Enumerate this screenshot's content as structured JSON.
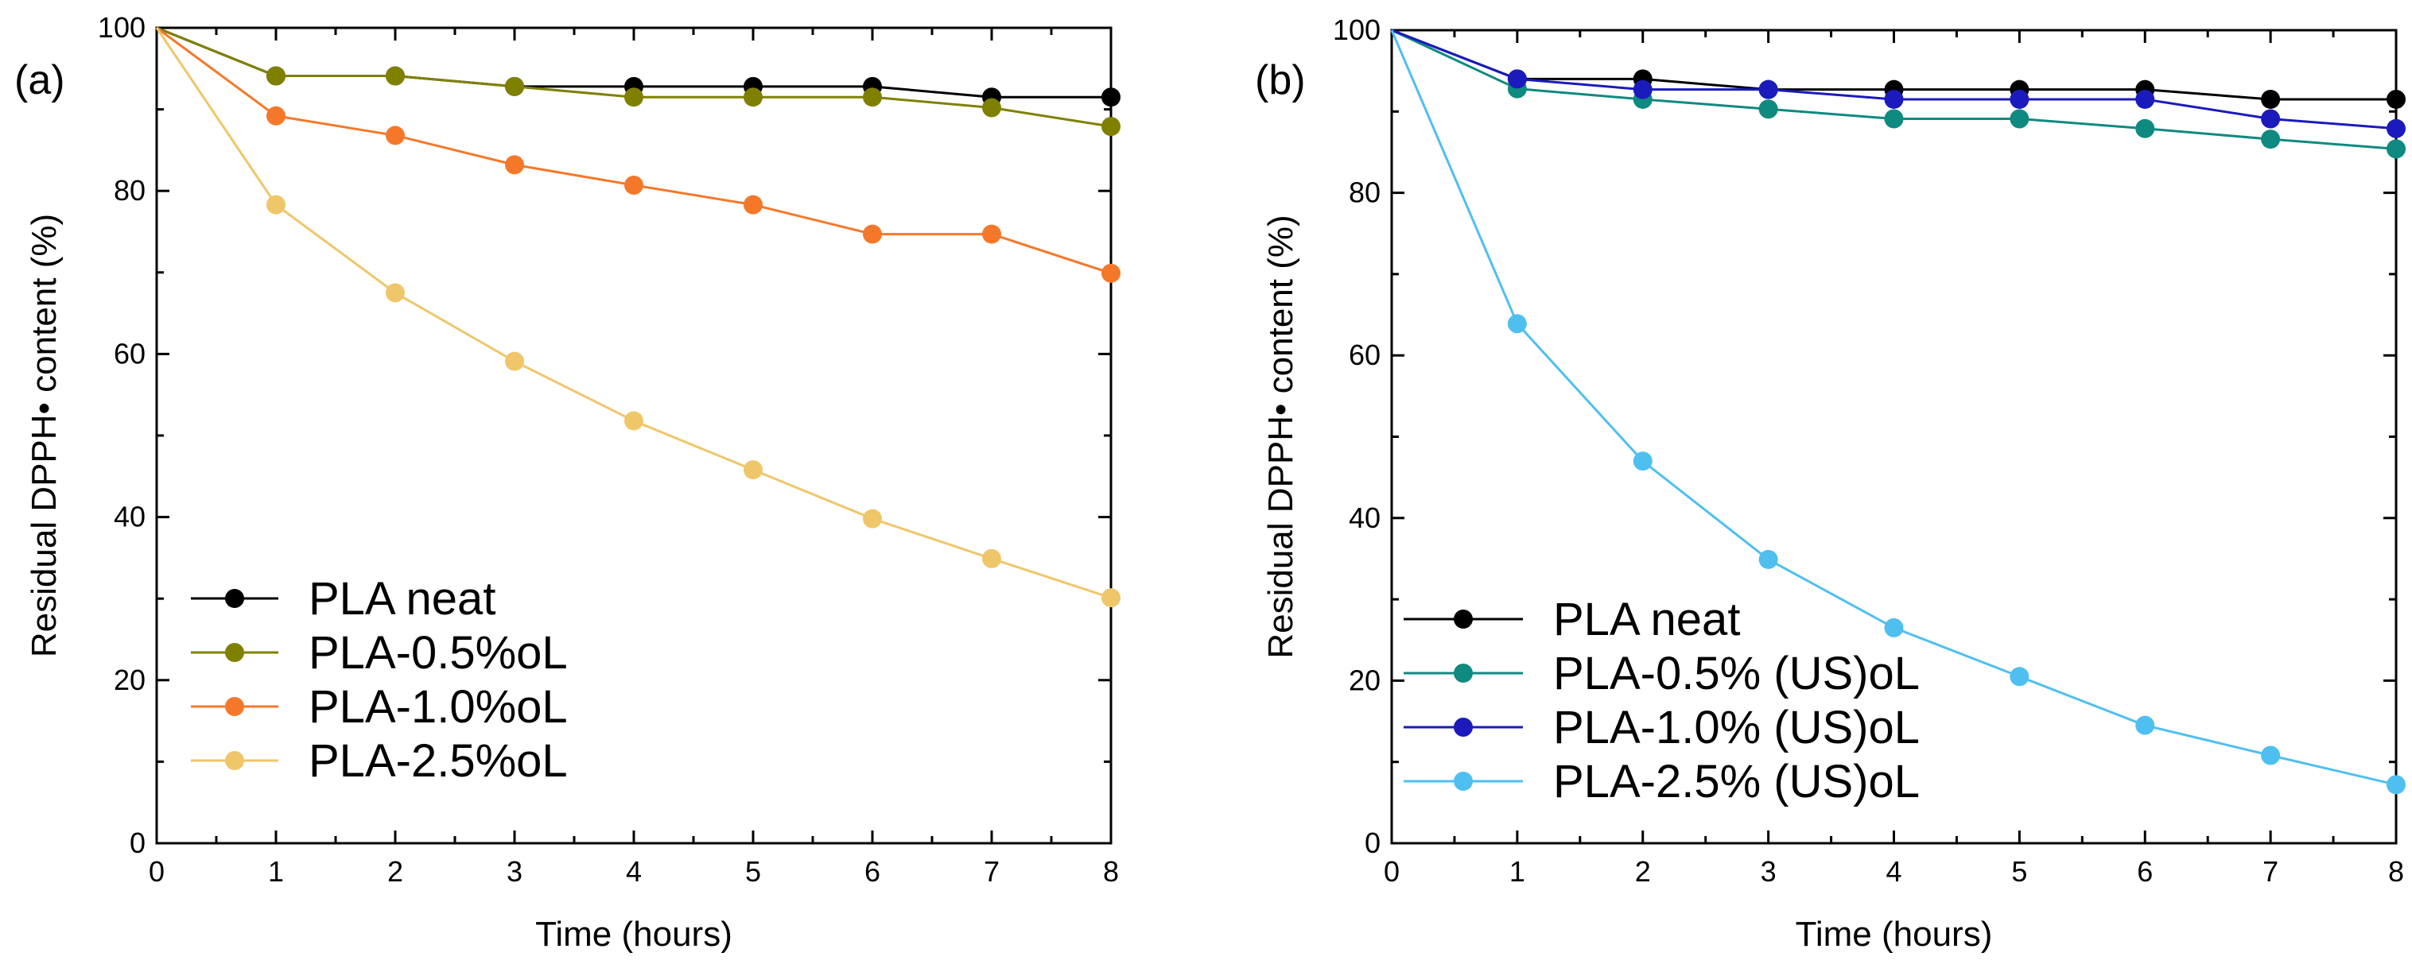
{
  "chart_data": [
    {
      "type": "line",
      "panel_label": "(a)",
      "xlabel": "Time (hours)",
      "ylabel": "Residual DPPH• content (%)",
      "xlim": [
        0,
        8
      ],
      "ylim": [
        0,
        100
      ],
      "x_ticks": [
        "0",
        "1",
        "2",
        "3",
        "4",
        "5",
        "6",
        "7",
        "8"
      ],
      "y_ticks": [
        "0",
        "20",
        "40",
        "60",
        "80",
        "100"
      ],
      "legend_position": "bottom-left",
      "x": [
        0,
        1,
        2,
        3,
        4,
        5,
        6,
        7,
        8
      ],
      "series": [
        {
          "name": "PLA neat",
          "color": "#000000",
          "values": [
            100,
            94.1,
            94.1,
            92.8,
            92.8,
            92.8,
            92.8,
            91.5,
            91.5
          ]
        },
        {
          "name": "PLA-0.5%oL",
          "color": "#808000",
          "values": [
            100,
            94.1,
            94.1,
            92.8,
            91.5,
            91.5,
            91.5,
            90.2,
            87.9
          ]
        },
        {
          "name": "PLA-1.0%oL",
          "color": "#f5782a",
          "values": [
            100,
            89.2,
            86.8,
            83.2,
            80.7,
            78.3,
            74.7,
            74.7,
            69.9
          ]
        },
        {
          "name": "PLA-2.5%oL",
          "color": "#f0c66a",
          "values": [
            100,
            78.3,
            67.5,
            59.1,
            51.8,
            45.8,
            39.8,
            34.9,
            30.1
          ]
        }
      ]
    },
    {
      "type": "line",
      "panel_label": "(b)",
      "xlabel": "Time (hours)",
      "ylabel": "Residual DPPH• content (%)",
      "xlim": [
        0,
        8
      ],
      "ylim": [
        0,
        100
      ],
      "x_ticks": [
        "0",
        "1",
        "2",
        "3",
        "4",
        "5",
        "6",
        "7",
        "8"
      ],
      "y_ticks": [
        "0",
        "20",
        "40",
        "60",
        "80",
        "100"
      ],
      "legend_position": "bottom-left",
      "x": [
        0,
        1,
        2,
        3,
        4,
        5,
        6,
        7,
        8
      ],
      "series": [
        {
          "name": "PLA neat",
          "color": "#000000",
          "values": [
            100,
            94.0,
            94.0,
            92.7,
            92.7,
            92.7,
            92.7,
            91.5,
            91.5
          ]
        },
        {
          "name": "PLA-0.5% (US)oL",
          "color": "#0f8a80",
          "values": [
            100,
            92.8,
            91.5,
            90.3,
            89.1,
            89.1,
            87.9,
            86.6,
            85.4
          ]
        },
        {
          "name": "PLA-1.0% (US)oL",
          "color": "#1b1bbd",
          "values": [
            100,
            94.0,
            92.7,
            92.7,
            91.5,
            91.5,
            91.5,
            89.1,
            87.9
          ]
        },
        {
          "name": "PLA-2.5% (US)oL",
          "color": "#4fbff0",
          "values": [
            100,
            63.9,
            47.0,
            34.9,
            26.5,
            20.5,
            14.5,
            10.8,
            7.2
          ]
        }
      ]
    }
  ]
}
